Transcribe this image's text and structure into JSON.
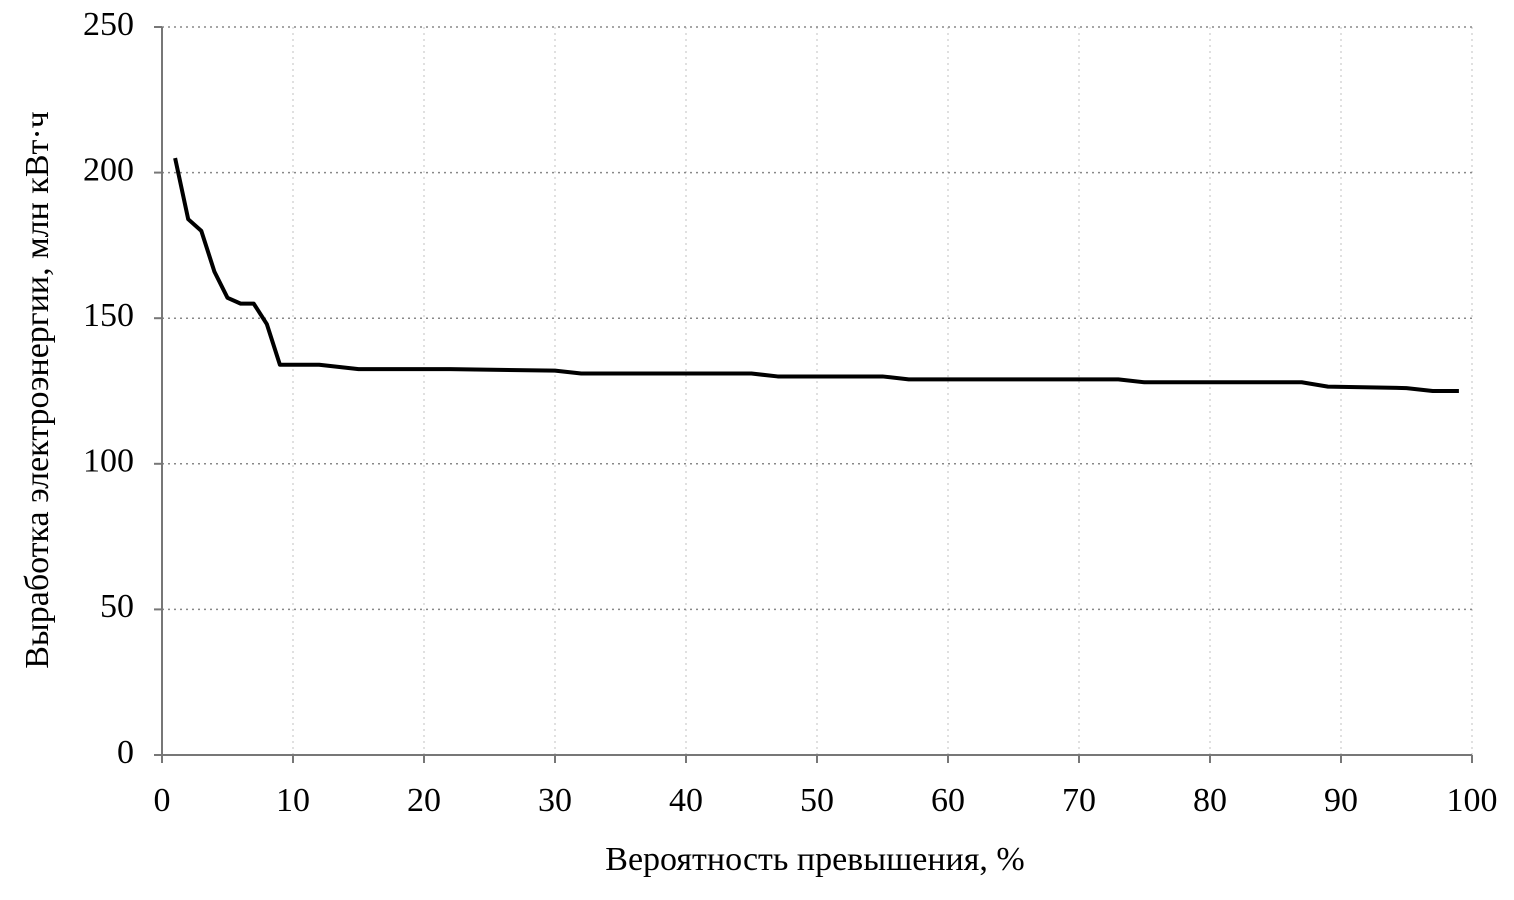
{
  "chart_data": {
    "type": "line",
    "x_label": "Вероятность превышения, %",
    "y_label": "Выработка электроэнергии, млн кВт·ч",
    "xlim": [
      0,
      100
    ],
    "xticks": [
      0,
      10,
      20,
      30,
      40,
      50,
      60,
      70,
      80,
      90,
      100
    ],
    "ylim": [
      0,
      250
    ],
    "yticks": [
      0,
      50,
      100,
      150,
      200,
      250
    ],
    "grid": true,
    "x": [
      1,
      2,
      3,
      4,
      5,
      6,
      7,
      8,
      9,
      12,
      15,
      22,
      30,
      32,
      45,
      47,
      55,
      57,
      73,
      75,
      87,
      89,
      95,
      97,
      99
    ],
    "series": [
      {
        "color": "#000000",
        "values": [
          205,
          184,
          180,
          166,
          157,
          155,
          155,
          148,
          134,
          134,
          132.5,
          132.5,
          132,
          131,
          131,
          130,
          130,
          129,
          129,
          128,
          128,
          126.5,
          126,
          125,
          125
        ]
      }
    ]
  }
}
